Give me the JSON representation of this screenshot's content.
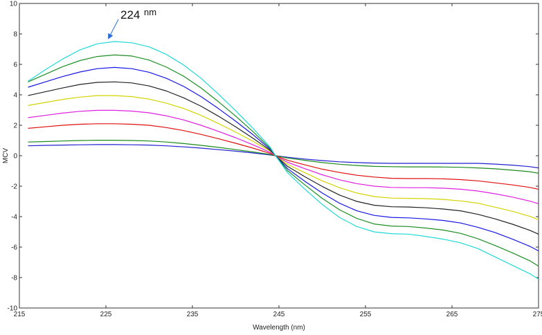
{
  "chart_data": {
    "type": "line",
    "title": "",
    "xlabel": "Wavelength (nm)",
    "ylabel": "MCV",
    "xlim": [
      215,
      275
    ],
    "ylim": [
      -10,
      10
    ],
    "xticks": [
      215,
      225,
      235,
      245,
      255,
      265,
      275
    ],
    "yticks": [
      -10,
      -8,
      -6,
      -4,
      -2,
      0,
      2,
      4,
      6,
      8,
      10
    ],
    "x": [
      216,
      218,
      220,
      222,
      224,
      226,
      228,
      230,
      232,
      234,
      236,
      238,
      240,
      242,
      244,
      244.6,
      246,
      248,
      250,
      252,
      254,
      256,
      258,
      260,
      262,
      264,
      266,
      268,
      270,
      272,
      274,
      275
    ],
    "series": [
      {
        "color": "#1f1fd0",
        "values": [
          0.65,
          0.68,
          0.7,
          0.72,
          0.73,
          0.73,
          0.72,
          0.7,
          0.65,
          0.58,
          0.5,
          0.4,
          0.3,
          0.18,
          0.05,
          0.0,
          -0.1,
          -0.22,
          -0.32,
          -0.4,
          -0.45,
          -0.48,
          -0.5,
          -0.5,
          -0.5,
          -0.5,
          -0.5,
          -0.5,
          -0.55,
          -0.62,
          -0.72,
          -0.8
        ]
      },
      {
        "color": "#1a8a1a",
        "values": [
          0.9,
          0.93,
          0.97,
          1.0,
          1.02,
          1.02,
          1.0,
          0.97,
          0.9,
          0.8,
          0.68,
          0.55,
          0.4,
          0.25,
          0.08,
          0.0,
          -0.15,
          -0.3,
          -0.45,
          -0.56,
          -0.64,
          -0.7,
          -0.72,
          -0.73,
          -0.73,
          -0.74,
          -0.76,
          -0.8,
          -0.86,
          -0.95,
          -1.05,
          -1.15
        ]
      },
      {
        "color": "#e01010",
        "values": [
          1.8,
          1.9,
          2.0,
          2.07,
          2.1,
          2.1,
          2.07,
          2.0,
          1.85,
          1.65,
          1.4,
          1.12,
          0.82,
          0.5,
          0.15,
          0.0,
          -0.3,
          -0.6,
          -0.88,
          -1.1,
          -1.28,
          -1.4,
          -1.48,
          -1.5,
          -1.5,
          -1.52,
          -1.57,
          -1.65,
          -1.78,
          -1.92,
          -2.08,
          -2.2
        ]
      },
      {
        "color": "#e020e0",
        "values": [
          2.5,
          2.65,
          2.8,
          2.92,
          2.98,
          2.98,
          2.93,
          2.82,
          2.62,
          2.35,
          2.0,
          1.6,
          1.18,
          0.72,
          0.22,
          0.0,
          -0.43,
          -0.85,
          -1.25,
          -1.58,
          -1.83,
          -2.0,
          -2.08,
          -2.1,
          -2.1,
          -2.13,
          -2.2,
          -2.32,
          -2.5,
          -2.72,
          -2.98,
          -3.15
        ]
      },
      {
        "color": "#d4d400",
        "values": [
          3.3,
          3.5,
          3.7,
          3.85,
          3.95,
          3.95,
          3.88,
          3.72,
          3.45,
          3.1,
          2.65,
          2.12,
          1.55,
          0.95,
          0.3,
          0.0,
          -0.57,
          -1.12,
          -1.65,
          -2.1,
          -2.45,
          -2.68,
          -2.78,
          -2.8,
          -2.82,
          -2.87,
          -2.97,
          -3.12,
          -3.38,
          -3.65,
          -3.98,
          -4.2
        ]
      },
      {
        "color": "#222222",
        "values": [
          3.95,
          4.2,
          4.45,
          4.68,
          4.82,
          4.85,
          4.78,
          4.58,
          4.25,
          3.8,
          3.25,
          2.6,
          1.9,
          1.15,
          0.35,
          0.0,
          -0.7,
          -1.38,
          -2.02,
          -2.58,
          -3.0,
          -3.25,
          -3.35,
          -3.37,
          -3.42,
          -3.5,
          -3.62,
          -3.85,
          -4.15,
          -4.5,
          -4.9,
          -5.15
        ]
      },
      {
        "color": "#1515e8",
        "values": [
          4.5,
          4.85,
          5.2,
          5.5,
          5.72,
          5.8,
          5.72,
          5.48,
          5.08,
          4.55,
          3.88,
          3.1,
          2.27,
          1.38,
          0.42,
          0.0,
          -0.85,
          -1.68,
          -2.45,
          -3.12,
          -3.62,
          -3.92,
          -4.05,
          -4.08,
          -4.15,
          -4.25,
          -4.42,
          -4.7,
          -5.05,
          -5.48,
          -5.95,
          -6.25
        ]
      },
      {
        "color": "#1b8e22",
        "values": [
          4.85,
          5.35,
          5.85,
          6.25,
          6.52,
          6.62,
          6.55,
          6.28,
          5.82,
          5.22,
          4.45,
          3.55,
          2.6,
          1.58,
          0.48,
          0.0,
          -0.98,
          -1.92,
          -2.8,
          -3.55,
          -4.12,
          -4.48,
          -4.62,
          -4.65,
          -4.75,
          -4.88,
          -5.1,
          -5.45,
          -5.9,
          -6.38,
          -6.9,
          -7.25
        ]
      },
      {
        "color": "#20d8d8",
        "values": [
          4.9,
          5.65,
          6.35,
          6.95,
          7.35,
          7.5,
          7.42,
          7.15,
          6.65,
          5.95,
          5.08,
          4.05,
          2.95,
          1.8,
          0.55,
          0.0,
          -1.12,
          -2.2,
          -3.2,
          -4.05,
          -4.65,
          -5.0,
          -5.12,
          -5.15,
          -5.3,
          -5.48,
          -5.72,
          -6.1,
          -6.65,
          -7.2,
          -7.75,
          -8.1
        ]
      }
    ],
    "annotation": {
      "number": "224",
      "unit": "nm",
      "x": 225,
      "y": 7.5
    },
    "grid": false,
    "legend": "none"
  }
}
